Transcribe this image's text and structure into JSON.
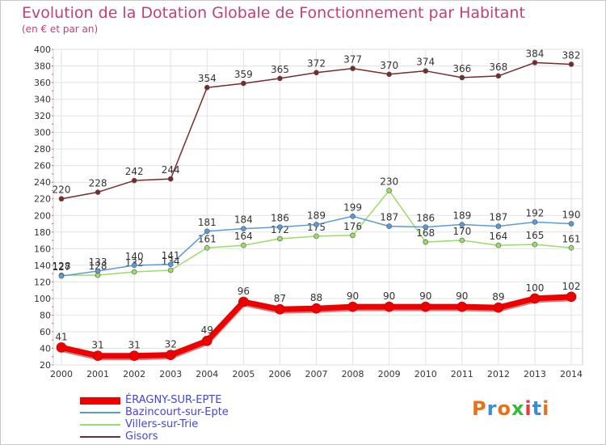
{
  "title": "Evolution de la Dotation Globale de Fonctionnement par Habitant",
  "subtitle": "(en € et par an)",
  "logo": {
    "text": "Proxiti",
    "colors": [
      "#e8701a",
      "#3a8fd4",
      "#e8701a",
      "#3ab83a",
      "#e83a3a",
      "#3a8fd4",
      "#e8701a"
    ]
  },
  "chart_data": {
    "type": "line",
    "x": [
      "2000",
      "2001",
      "2002",
      "2003",
      "2004",
      "2005",
      "2006",
      "2007",
      "2008",
      "2009",
      "2010",
      "2011",
      "2012",
      "2013",
      "2014"
    ],
    "ylim": [
      20,
      400
    ],
    "yticks": [
      20,
      40,
      60,
      80,
      100,
      120,
      140,
      160,
      180,
      200,
      220,
      240,
      260,
      280,
      300,
      320,
      340,
      360,
      380,
      400
    ],
    "grid": true,
    "legend_position": "bottom-left",
    "series": [
      {
        "name": "ÉRAGNY-SUR-EPTE",
        "color": "#ee0000",
        "values": [
          41,
          31,
          31,
          32,
          49,
          96,
          87,
          88,
          90,
          90,
          90,
          90,
          89,
          100,
          102
        ]
      },
      {
        "name": "Bazincourt-sur-Epte",
        "color": "#5a9ad5",
        "values": [
          127,
          133,
          140,
          141,
          181,
          184,
          186,
          189,
          199,
          187,
          186,
          189,
          187,
          192,
          190
        ]
      },
      {
        "name": "Villers-sur-Trie",
        "color": "#99dd66",
        "values": [
          128,
          128,
          132,
          134,
          161,
          164,
          172,
          175,
          176,
          230,
          168,
          170,
          164,
          165,
          161
        ]
      },
      {
        "name": "Gisors",
        "color": "#7a2a2a",
        "values": [
          220,
          228,
          242,
          244,
          354,
          359,
          365,
          372,
          377,
          370,
          374,
          366,
          368,
          384,
          382
        ]
      }
    ]
  }
}
